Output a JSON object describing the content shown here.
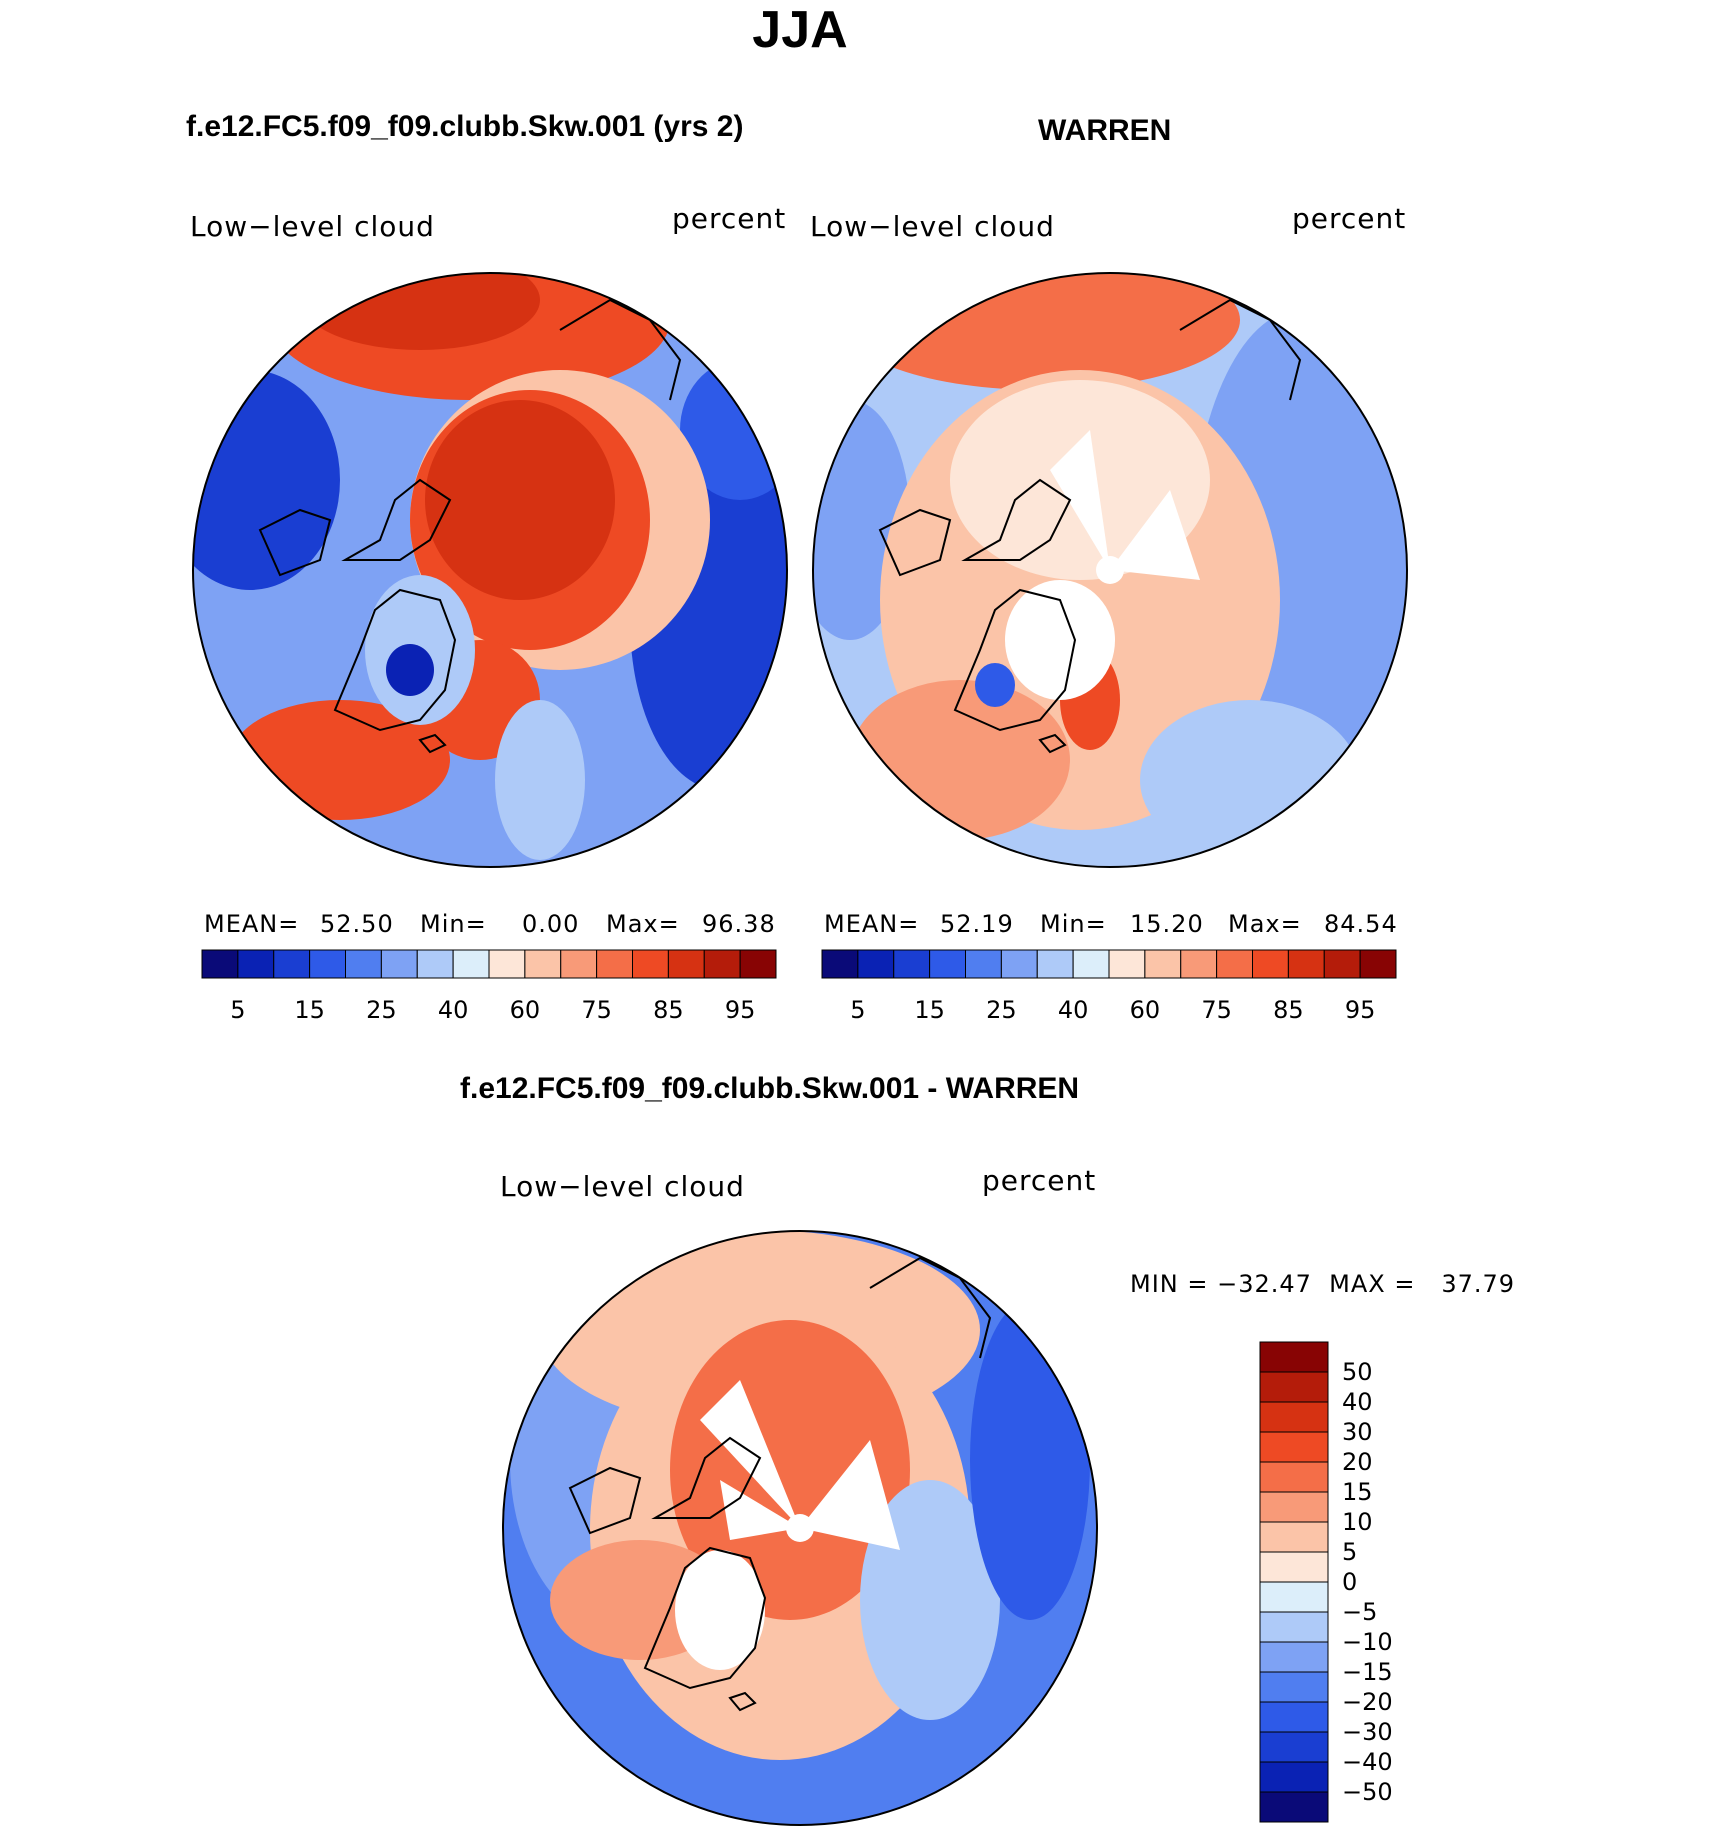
{
  "title": "JJA",
  "panels": [
    {
      "title": "f.e12.FC5.f09_f09.clubb.Skw.001 (yrs 2)",
      "variable": "Low−level cloud",
      "units": "percent",
      "stats": {
        "mean_label": "MEAN=",
        "mean": "52.50",
        "min_label": "Min=",
        "min": "0.00",
        "max_label": "Max=",
        "max": "96.38"
      }
    },
    {
      "title": "WARREN",
      "variable": "Low−level cloud",
      "units": "percent",
      "stats": {
        "mean_label": "MEAN=",
        "mean": "52.19",
        "min_label": "Min=",
        "min": "15.20",
        "max_label": "Max=",
        "max": "84.54"
      }
    }
  ],
  "colorbar": {
    "tick_labels": [
      "5",
      "15",
      "25",
      "40",
      "60",
      "75",
      "85",
      "95"
    ],
    "colors": [
      "#0a0a78",
      "#0a22b4",
      "#1a3ed2",
      "#2e5ae8",
      "#507ef0",
      "#7ea2f4",
      "#aecaf8",
      "#dceefa",
      "#fde6d8",
      "#fbc4a8",
      "#f89a78",
      "#f46e48",
      "#ee4a24",
      "#d63212",
      "#b41c0a",
      "#880404"
    ]
  },
  "difference": {
    "title": "f.e12.FC5.f09_f09.clubb.Skw.001 - WARREN",
    "variable": "Low−level cloud",
    "units": "percent",
    "stats": "MIN = −32.47  MAX =   37.79",
    "legend_labels": [
      "50",
      "40",
      "30",
      "20",
      "15",
      "10",
      "5",
      "0",
      "−5",
      "−10",
      "−15",
      "−20",
      "−30",
      "−40",
      "−50"
    ],
    "legend_colors": [
      "#880404",
      "#b41c0a",
      "#d63212",
      "#ee4a24",
      "#f46e48",
      "#f89a78",
      "#fbc4a8",
      "#fde6d8",
      "#dceefa",
      "#aecaf8",
      "#7ea2f4",
      "#507ef0",
      "#2e5ae8",
      "#1a3ed2",
      "#0a22b4",
      "#0a0a78"
    ]
  }
}
